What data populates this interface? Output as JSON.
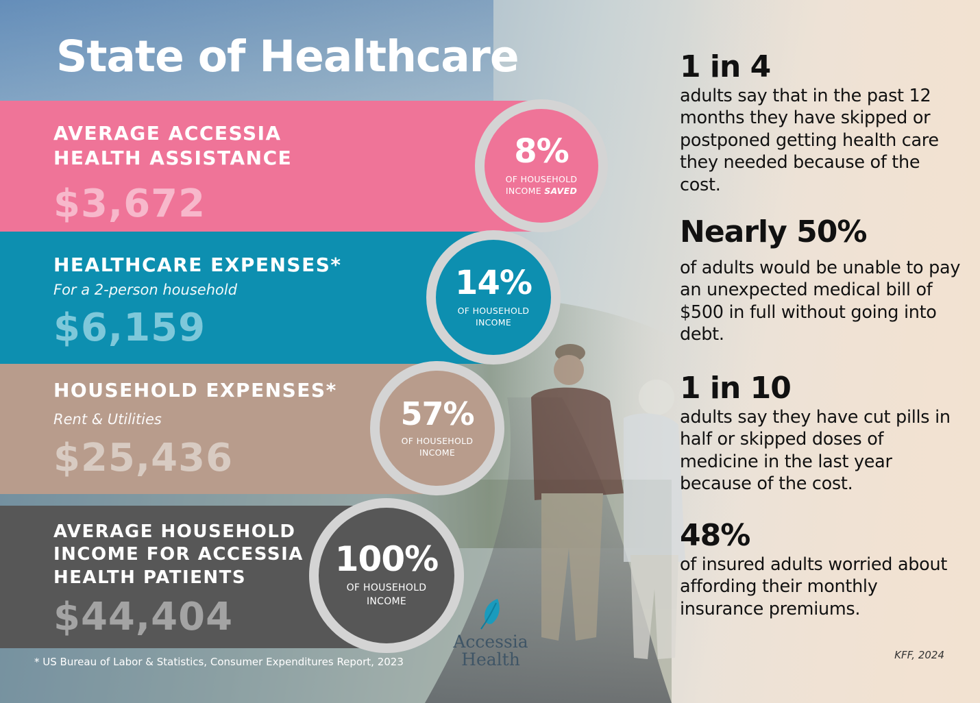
{
  "title": "State of Healthcare",
  "bands": [
    {
      "label_lines": [
        "AVERAGE ACCESSIA",
        "HEALTH ASSISTANCE"
      ],
      "sub": "",
      "amount": "$3,672",
      "percent": "8%",
      "caption_line1": "OF HOUSEHOLD",
      "caption_line2": "INCOME",
      "caption_emphasis": "SAVED",
      "color": "#ef7498"
    },
    {
      "label_lines": [
        "HEALTHCARE EXPENSES*"
      ],
      "sub": "For a 2-person household",
      "amount": "$6,159",
      "percent": "14%",
      "caption_line1": "OF HOUSEHOLD",
      "caption_line2": "INCOME",
      "color": "#0d8fb0"
    },
    {
      "label_lines": [
        "HOUSEHOLD EXPENSES*"
      ],
      "sub": "Rent & Utilities",
      "amount": "$25,436",
      "percent": "57%",
      "caption_line1": "OF HOUSEHOLD",
      "caption_line2": "INCOME",
      "color": "#b89c8c"
    },
    {
      "label_lines": [
        "AVERAGE HOUSEHOLD",
        "INCOME FOR ACCESSIA",
        "HEALTH PATIENTS"
      ],
      "sub": "",
      "amount": "$44,404",
      "percent": "100%",
      "caption_line1": "OF HOUSEHOLD",
      "caption_line2": "INCOME",
      "color": "#575757"
    }
  ],
  "stats": [
    {
      "headline": "1 in 4",
      "body": "adults say that in the past 12 months they have skipped or postponed getting health care they needed because of the cost."
    },
    {
      "headline": "Nearly 50%",
      "body": "of adults would be unable to pay an unexpected medical bill of $500 in full without going into debt."
    },
    {
      "headline": "1 in 10",
      "body": "adults say they have cut pills in half or skipped doses of medicine in the last year because of the cost."
    },
    {
      "headline": "48%",
      "body": "of insured adults worried about affording their monthly insurance premiums."
    }
  ],
  "footnote": "* US Bureau of Labor & Statistics, Consumer Expenditures Report, 2023",
  "citation": "KFF, 2024",
  "brand": {
    "line1": "Accessia",
    "line2": "Health",
    "icon": "feather-icon",
    "color": "#1a9bbd"
  }
}
